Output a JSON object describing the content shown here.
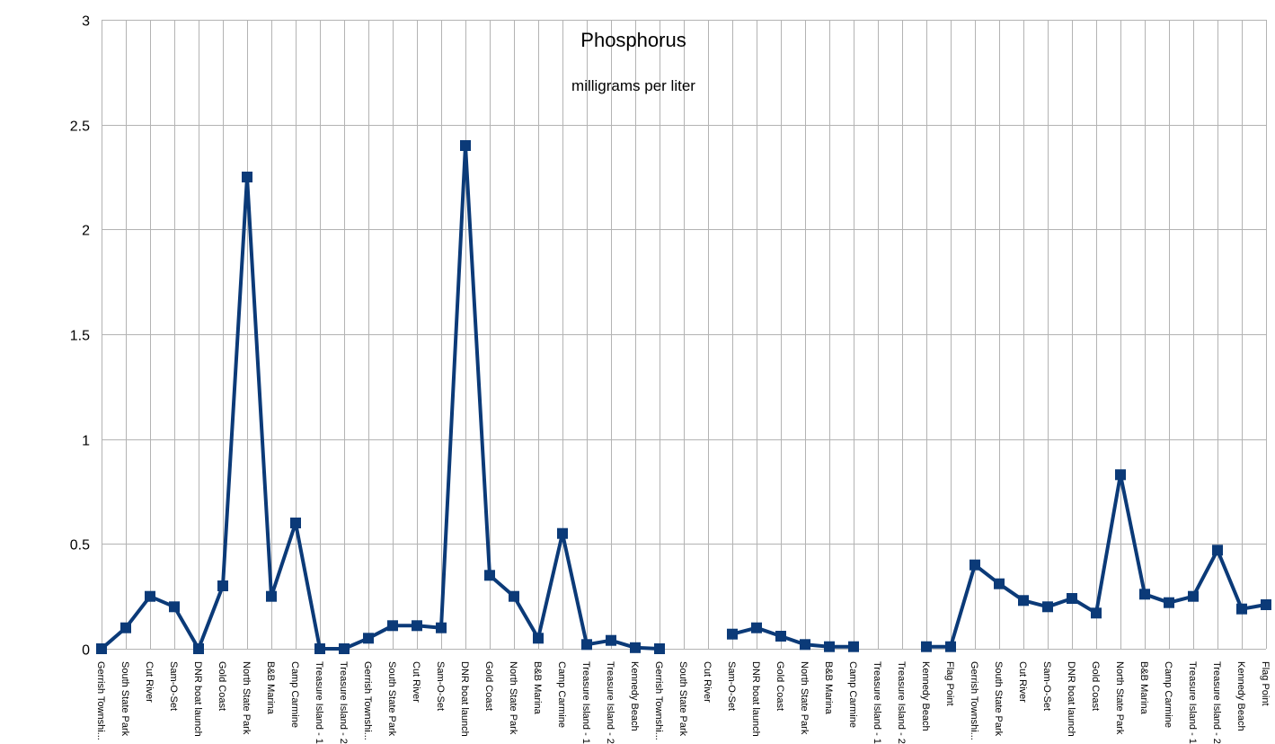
{
  "chart_data": {
    "type": "line",
    "title": "Phosphorus",
    "subtitle": "milligrams per liter",
    "xlabel": "",
    "ylabel": "",
    "ylim": [
      0,
      3
    ],
    "yticks": [
      "0",
      "0.5",
      "1",
      "1.5",
      "2",
      "2.5",
      "3"
    ],
    "grid": true,
    "legend": "none",
    "series_color": "#0b3a78",
    "grid_color": "#b3b3b3",
    "categories": [
      "Gerrish Townshi...",
      "South State Park",
      "Cut River",
      "Sam-O-Set",
      "DNR boat launch",
      "Gold Coast",
      "North State Park",
      "B&B Marina",
      "Camp Carmine",
      "Treasure Island - 1",
      "Treasure Island - 2",
      "Gerrish Townshi...",
      "South State Park",
      "Cut River",
      "Sam-O-Set",
      "DNR boat launch",
      "Gold Coast",
      "North State Park",
      "B&B Marina",
      "Camp Carmine",
      "Treasure Island - 1",
      "Treasure Island - 2",
      "Kennedy Beach",
      "Gerrish Townshi...",
      "South State Park",
      "Cut River",
      "Sam-O-Set",
      "DNR boat launch",
      "Gold Coast",
      "North State Park",
      "B&B Marina",
      "Camp Carmine",
      "Treasure Island - 1",
      "Treasure Island - 2",
      "Kennedy Beach",
      "Flag Point",
      "Gerrish Townshi...",
      "South State Park",
      "Cut River",
      "Sam-O-Set",
      "DNR boat launch",
      "Gold Coast",
      "North State Park",
      "B&B Marina",
      "Camp Carmine",
      "Treasure Island - 1",
      "Treasure Island - 2",
      "Kennedy Beach",
      "Flag Point"
    ],
    "series": [
      {
        "values": [
          0.0,
          0.1,
          0.25,
          0.2,
          0.0,
          0.3,
          2.25,
          0.25,
          0.6,
          0.0,
          0.0,
          0.05,
          0.11,
          0.11,
          0.1,
          2.4,
          0.35,
          0.25,
          0.05,
          0.55,
          0.02,
          0.04,
          0.005,
          0.0,
          null,
          null,
          0.07,
          0.1,
          0.06,
          0.02,
          0.01,
          0.01,
          null,
          null,
          0.01,
          0.01,
          0.4,
          0.31,
          0.23,
          0.2,
          0.24,
          0.17,
          0.83,
          0.26,
          0.22,
          0.25,
          0.47,
          0.19,
          0.21
        ]
      }
    ]
  }
}
